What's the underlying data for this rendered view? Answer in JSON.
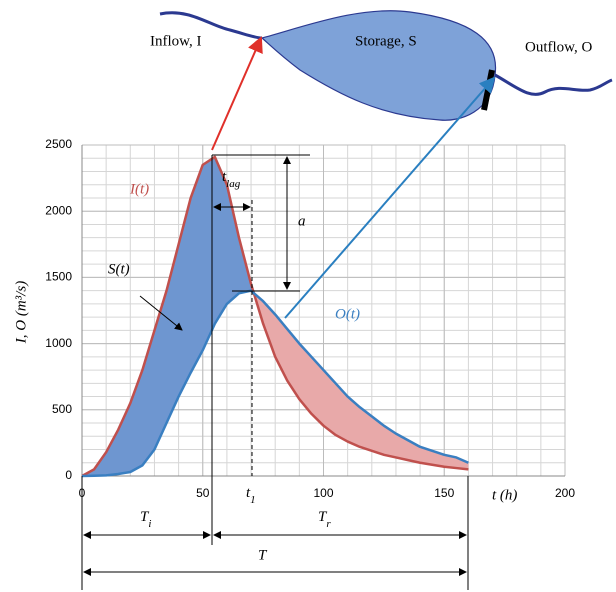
{
  "chart_data": {
    "type": "line",
    "x": [
      0,
      5,
      10,
      15,
      20,
      25,
      30,
      35,
      40,
      45,
      50,
      55,
      60,
      65,
      70,
      75,
      80,
      85,
      90,
      95,
      100,
      105,
      110,
      115,
      120,
      125,
      130,
      135,
      140,
      145,
      150,
      155,
      160
    ],
    "series": [
      {
        "name": "I(t)",
        "color": "#c0504d",
        "values": [
          0,
          50,
          180,
          350,
          550,
          800,
          1100,
          1400,
          1750,
          2100,
          2350,
          2410,
          2200,
          1800,
          1450,
          1150,
          900,
          720,
          580,
          470,
          380,
          310,
          260,
          220,
          190,
          160,
          140,
          120,
          100,
          85,
          70,
          60,
          50
        ]
      },
      {
        "name": "O(t)",
        "color": "#3a7fc1",
        "values": [
          0,
          2,
          5,
          15,
          30,
          80,
          200,
          400,
          600,
          780,
          950,
          1150,
          1300,
          1380,
          1400,
          1320,
          1220,
          1110,
          1000,
          900,
          800,
          700,
          600,
          520,
          450,
          380,
          320,
          270,
          220,
          190,
          160,
          140,
          100
        ]
      }
    ],
    "xlim": [
      0,
      200
    ],
    "xticks": [
      0,
      50,
      100,
      150,
      200
    ],
    "ylim": [
      0,
      2500
    ],
    "yticks": [
      0,
      500,
      1000,
      1500,
      2000,
      2500
    ],
    "grid": true,
    "xgrid_step": 10,
    "ygrid_step": 100,
    "xlabel": "t (h)",
    "ylabel": "I, O  (m³/s)",
    "inflow_label": "Inflow, I",
    "storage_label": "Storage, S",
    "outflow_label": "Outflow, O",
    "storage_curve_label": "S(t)",
    "lag_label": {
      "text": "t",
      "sub": "lag"
    },
    "a_label": "a",
    "t1_label": {
      "text": "t",
      "sub": "1"
    },
    "Ti_label": {
      "text": "T",
      "sub": "i"
    },
    "Tr_label": {
      "text": "T",
      "sub": "r"
    },
    "T_label": "T",
    "fill_rising": "#6e96d0",
    "fill_falling": "#e8a9a9"
  }
}
